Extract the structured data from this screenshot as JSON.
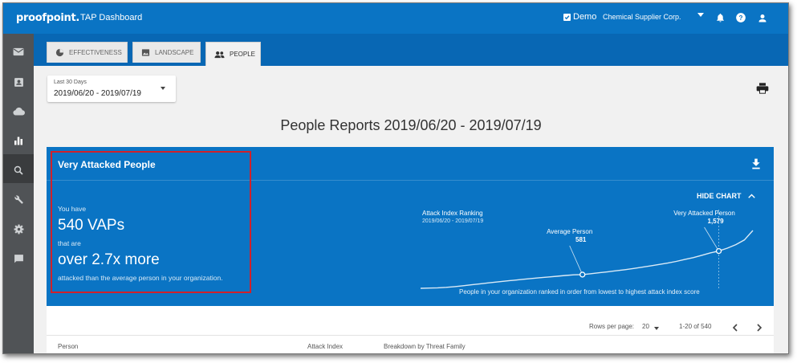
{
  "header": {
    "logo": "proofpoint.",
    "app_title": "TAP Dashboard",
    "demo_label": "Demo",
    "demo_checked": true,
    "company": "Chemical Supplier Corp.",
    "icons": [
      "bell-icon",
      "help-icon",
      "user-icon"
    ]
  },
  "sidebar": {
    "items": [
      {
        "icon": "mail-icon"
      },
      {
        "icon": "contact-card-icon"
      },
      {
        "icon": "cloud-icon"
      },
      {
        "icon": "bar-chart-icon",
        "active": true
      },
      {
        "icon": "search-icon"
      },
      {
        "icon": "wrench-icon"
      },
      {
        "icon": "gear-icon"
      },
      {
        "icon": "message-icon"
      }
    ]
  },
  "tabs": [
    {
      "label": "EFFECTIVENESS",
      "icon": "pie-chart-icon"
    },
    {
      "label": "LANDSCAPE",
      "icon": "image-icon"
    },
    {
      "label": "PEOPLE",
      "icon": "people-icon",
      "active": true
    }
  ],
  "date_filter": {
    "label": "Last 30 Days",
    "value": "2019/06/20 - 2019/07/19"
  },
  "report_title": "People Reports 2019/06/20 - 2019/07/19",
  "vap_panel": {
    "title": "Very Attacked People",
    "line1": "You have",
    "count": "540 VAPs",
    "line2": "that are",
    "multiplier": "over 2.7x more",
    "line3": "attacked than the average person in your organization.",
    "hide_chart": "HIDE CHART",
    "colors": {
      "panel": "#0a74c4",
      "highlight_border": "#d0212a"
    }
  },
  "chart_data": {
    "type": "line",
    "title": "Attack Index Ranking",
    "subtitle": "2019/06/20 - 2019/07/19",
    "xlabel": "People in your organization ranked in order from lowest to highest attack index score",
    "annotations": [
      {
        "label": "Average Person",
        "value": "581",
        "y": 581
      },
      {
        "label": "Very Attacked Person",
        "value": "1,579",
        "y": 1579
      }
    ],
    "series": [
      {
        "values": [
          0,
          10,
          20,
          40,
          70,
          110,
          150,
          190,
          230,
          270,
          310,
          345,
          380,
          415,
          450,
          480,
          510,
          545,
          570,
          581,
          620,
          660,
          700,
          745,
          790,
          840,
          895,
          950,
          1010,
          1070,
          1140,
          1220,
          1300,
          1400,
          1500,
          1579,
          1700,
          1850,
          2050,
          2450
        ]
      }
    ]
  },
  "table": {
    "rows_per_page_label": "Rows per page:",
    "rows_per_page": "20",
    "range": "1-20 of 540",
    "columns": [
      "Person",
      "Attack Index",
      "Breakdown by Threat Family"
    ]
  }
}
